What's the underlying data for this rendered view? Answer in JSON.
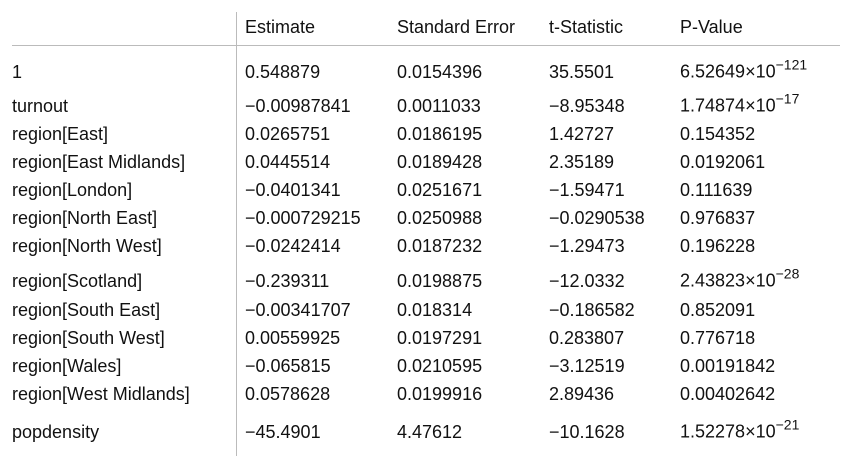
{
  "table": {
    "header": [
      "Estimate",
      "Standard Error",
      "t-Statistic",
      "P-Value"
    ],
    "rows": [
      [
        "1",
        "0.548879",
        "0.0154396",
        "35.5501",
        {
          "base": "6.52649×10",
          "exponent": "−121"
        }
      ],
      [
        "turnout",
        "−0.00987841",
        "0.0011033",
        "−8.95348",
        {
          "base": "1.74874×10",
          "exponent": "−17"
        }
      ],
      [
        "region[East]",
        "0.0265751",
        "0.0186195",
        "1.42727",
        "0.154352"
      ],
      [
        "region[East Midlands]",
        "0.0445514",
        "0.0189428",
        "2.35189",
        "0.0192061"
      ],
      [
        "region[London]",
        "−0.0401341",
        "0.0251671",
        "−1.59471",
        "0.111639"
      ],
      [
        "region[North East]",
        "−0.000729215",
        "0.0250988",
        "−0.0290538",
        "0.976837"
      ],
      [
        "region[North West]",
        "−0.0242414",
        "0.0187232",
        "−1.29473",
        "0.196228"
      ],
      [
        "region[Scotland]",
        "−0.239311",
        "0.0198875",
        "−12.0332",
        {
          "base": "2.43823×10",
          "exponent": "−28"
        }
      ],
      [
        "region[South East]",
        "−0.00341707",
        "0.018314",
        "−0.186582",
        "0.852091"
      ],
      [
        "region[South West]",
        "0.00559925",
        "0.0197291",
        "0.283807",
        "0.776718"
      ],
      [
        "region[Wales]",
        "−0.065815",
        "0.0210595",
        "−3.12519",
        "0.00191842"
      ],
      [
        "region[West Midlands]",
        "0.0578628",
        "0.0199916",
        "2.89436",
        "0.00402642"
      ],
      [
        "popdensity",
        "−45.4901",
        "4.47612",
        "−10.1628",
        {
          "base": "1.52278×10",
          "exponent": "−21"
        }
      ]
    ]
  }
}
